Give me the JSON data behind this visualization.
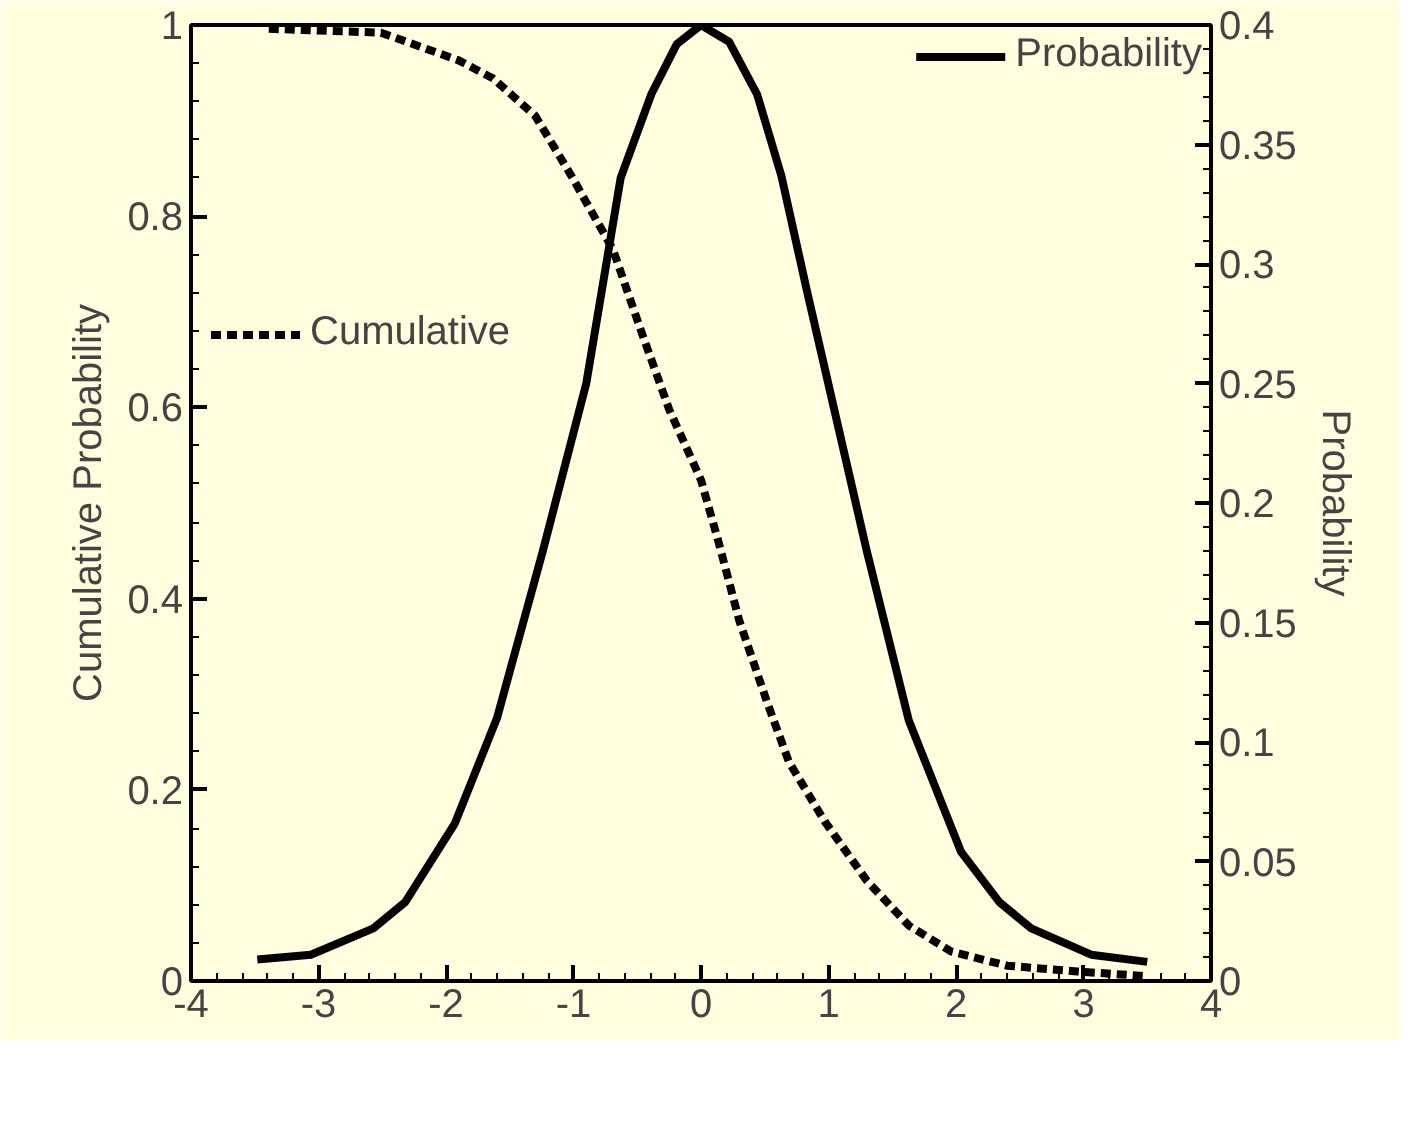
{
  "chart_data": {
    "type": "line",
    "ylabel": "Cumulative Probability",
    "y2label": "Probability",
    "xlim": [
      -4,
      4
    ],
    "xticks": [
      -4,
      -3,
      -2,
      -1,
      0,
      1,
      2,
      3,
      4
    ],
    "ylim": [
      0,
      1
    ],
    "yticks": [
      0,
      0.2,
      0.4,
      0.6,
      0.8,
      1
    ],
    "y2lim": [
      0,
      0.4
    ],
    "y2ticks": [
      0,
      0.05,
      0.1,
      0.15,
      0.2,
      0.25,
      0.3,
      0.35,
      0.4
    ],
    "legend": "top left",
    "grid": false,
    "marker": "none",
    "series": [
      {
        "name": "Cumulative",
        "color": "#000000",
        "line_style": "dotted",
        "x": [
          -3.39,
          -2.51,
          -1.9,
          -1.63,
          -1.3,
          -1.02,
          -0.69,
          -0.47,
          -0.25,
          0.0,
          0.14,
          0.3,
          0.52,
          0.69,
          0.97,
          1.3,
          1.63,
          1.96,
          2.4,
          2.95,
          3.5
        ],
        "values": [
          0.996,
          0.992,
          0.963,
          0.944,
          0.905,
          0.843,
          0.765,
          0.68,
          0.598,
          0.524,
          0.458,
          0.377,
          0.291,
          0.229,
          0.167,
          0.105,
          0.058,
          0.031,
          0.016,
          0.01,
          0.005
        ]
      },
      {
        "name": "Probability",
        "color": "#000000",
        "line_style": "solid",
        "axis": "y2",
        "x": [
          -3.48,
          -3.06,
          -2.57,
          -2.32,
          -1.93,
          -1.6,
          -1.24,
          -0.9,
          -0.63,
          -0.39,
          -0.19,
          0.0,
          0.22,
          0.44,
          0.63,
          0.83,
          1.3,
          1.63,
          2.04,
          2.34,
          2.59,
          3.06,
          3.5
        ],
        "values": [
          0.009,
          0.011,
          0.022,
          0.033,
          0.066,
          0.11,
          0.18,
          0.25,
          0.336,
          0.371,
          0.392,
          0.4,
          0.393,
          0.371,
          0.337,
          0.289,
          0.18,
          0.109,
          0.054,
          0.033,
          0.022,
          0.011,
          0.008
        ]
      }
    ]
  }
}
